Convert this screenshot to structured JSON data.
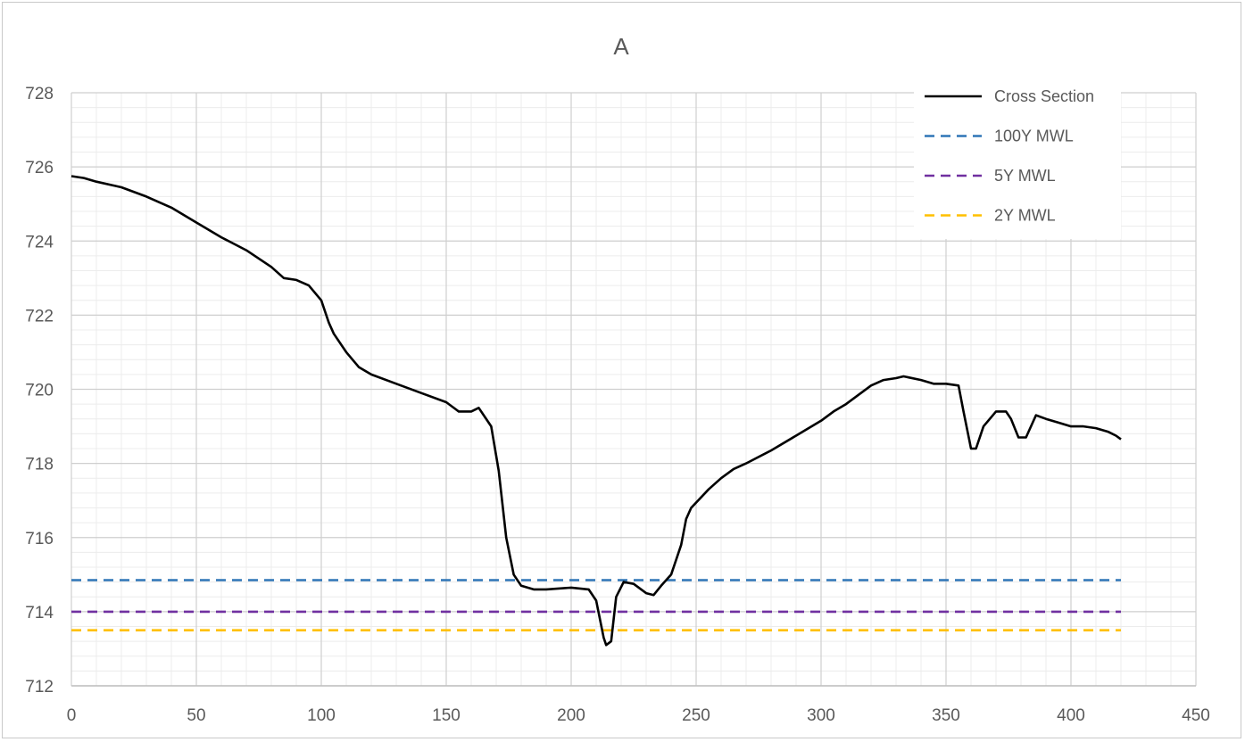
{
  "chart_data": {
    "type": "line",
    "title": "A",
    "xlabel": "",
    "ylabel": "",
    "xlim": [
      0,
      450
    ],
    "ylim": [
      712,
      728
    ],
    "x_ticks": [
      "0",
      "50",
      "100",
      "150",
      "200",
      "250",
      "300",
      "350",
      "400",
      "450"
    ],
    "y_ticks": [
      "712",
      "714",
      "716",
      "718",
      "720",
      "722",
      "724",
      "726",
      "728"
    ],
    "grid": true,
    "legend_position": "top-right",
    "series": [
      {
        "name": "Cross Section",
        "style": "solid",
        "color": "#000000",
        "x": [
          0,
          5,
          10,
          20,
          30,
          40,
          50,
          60,
          70,
          80,
          85,
          90,
          95,
          100,
          103,
          105,
          110,
          115,
          120,
          130,
          140,
          150,
          155,
          160,
          163,
          165,
          168,
          171,
          174,
          177,
          180,
          185,
          190,
          200,
          207,
          210,
          213,
          214,
          216,
          218,
          221,
          225,
          230,
          233,
          236,
          240,
          244,
          246,
          248,
          255,
          260,
          265,
          270,
          280,
          290,
          300,
          305,
          310,
          315,
          320,
          325,
          330,
          333,
          340,
          345,
          350,
          355,
          357,
          360,
          362,
          365,
          370,
          374,
          376,
          379,
          382,
          386,
          390,
          395,
          400,
          405,
          410,
          415,
          418,
          420
        ],
        "y": [
          725.75,
          725.7,
          725.6,
          725.45,
          725.2,
          724.9,
          724.5,
          724.1,
          723.75,
          723.3,
          723.0,
          722.95,
          722.8,
          722.4,
          721.8,
          721.5,
          721.0,
          720.6,
          720.4,
          720.15,
          719.9,
          719.65,
          719.4,
          719.4,
          719.5,
          719.3,
          719.0,
          717.8,
          716.0,
          715.0,
          714.7,
          714.6,
          714.6,
          714.65,
          714.6,
          714.3,
          713.3,
          713.1,
          713.2,
          714.4,
          714.8,
          714.75,
          714.5,
          714.45,
          714.7,
          715.0,
          715.8,
          716.5,
          716.8,
          717.3,
          717.6,
          717.85,
          718.0,
          718.35,
          718.75,
          719.15,
          719.4,
          719.6,
          719.85,
          720.1,
          720.25,
          720.3,
          720.35,
          720.25,
          720.15,
          720.15,
          720.1,
          719.4,
          718.4,
          718.4,
          719.0,
          719.4,
          719.4,
          719.2,
          718.7,
          718.7,
          719.3,
          719.2,
          719.1,
          719.0,
          719.0,
          718.95,
          718.85,
          718.75,
          718.65
        ]
      },
      {
        "name": "100Y MWL",
        "style": "dashed",
        "color": "#2e75b6",
        "x": [
          0,
          420
        ],
        "y": [
          714.85,
          714.85
        ]
      },
      {
        "name": "5Y MWL",
        "style": "dashed",
        "color": "#7030a0",
        "x": [
          0,
          420
        ],
        "y": [
          714.0,
          714.0
        ]
      },
      {
        "name": "2Y MWL",
        "style": "dashed",
        "color": "#ffc000",
        "x": [
          0,
          420
        ],
        "y": [
          713.5,
          713.5
        ]
      }
    ]
  }
}
